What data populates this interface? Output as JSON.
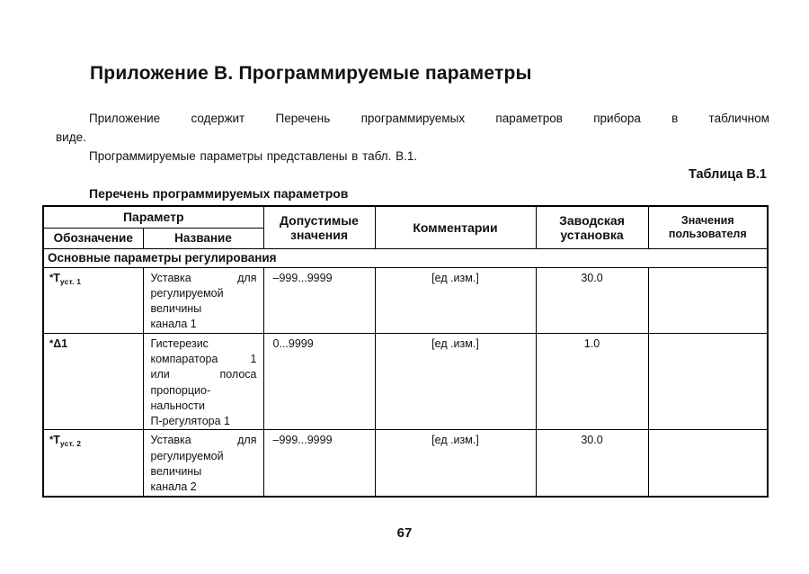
{
  "page": {
    "title": "Приложение В. Программируемые параметры",
    "paragraph1_line1": "Приложение содержит Перечень программируемых параметров прибора в табличном",
    "paragraph1_line2": "виде.",
    "paragraph2": "Программируемые параметры представлены в табл. В.1.",
    "table_caption": "Таблица В.1",
    "table_title": "Перечень программируемых параметров",
    "page_number": "67"
  },
  "table": {
    "header": {
      "parameter_group": "Параметр",
      "designation": "Обозначение",
      "name": "Название",
      "allowed_values": "Допустимые значения",
      "comments": "Комментарии",
      "factory_setting": "Заводская установка",
      "user_values": "Значения пользователя"
    },
    "section": "Основные параметры регулирования",
    "rows": [
      {
        "symbol": {
          "prefix": "*",
          "base": "T",
          "sub": "уст. 1"
        },
        "name_lines": [
          "Уставка для",
          "регулируемой",
          "величины",
          "канала 1"
        ],
        "allowed": "–999...9999",
        "comment": "[ед .изм.]",
        "factory": "30.0",
        "user": ""
      },
      {
        "symbol": {
          "prefix": "*",
          "base": "Δ1",
          "sub": ""
        },
        "name_lines": [
          "Гистерезис",
          "компаратора 1",
          "или полоса",
          "пропорцио-",
          "нальности",
          "П-регулятора 1"
        ],
        "allowed": "0...9999",
        "comment": "[ед .изм.]",
        "factory": "1.0",
        "user": ""
      },
      {
        "symbol": {
          "prefix": "*",
          "base": "T",
          "sub": "уст. 2"
        },
        "name_lines": [
          "Уставка для",
          "регулируемой",
          "величины",
          "канала 2"
        ],
        "allowed": "–999...9999",
        "comment": "[ед .изм.]",
        "factory": "30.0",
        "user": ""
      }
    ]
  },
  "colors": {
    "text": "#111111",
    "border": "#000000",
    "background": "#ffffff"
  }
}
